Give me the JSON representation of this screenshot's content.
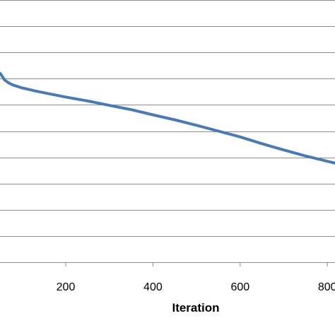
{
  "chart_data": {
    "type": "line",
    "title": "",
    "xlabel": "Iteration",
    "ylabel": "",
    "xlim": [
      50,
      870
    ],
    "ylim": [
      0,
      10
    ],
    "x_ticks": [
      200,
      400,
      600,
      800
    ],
    "x_tick_labels": [
      "200",
      "400",
      "600",
      "800"
    ],
    "y_gridlines": [
      1,
      2,
      3,
      4,
      5,
      6,
      7,
      8,
      9,
      10
    ],
    "grid": "horizontal",
    "legend": "none",
    "colors": {
      "series": "#4a7ab5",
      "grid": "#8c8c8c",
      "axis": "#8c8c8c"
    },
    "series": [
      {
        "x": [
          50,
          60,
          70,
          80,
          100,
          130,
          160,
          200,
          250,
          300,
          350,
          400,
          450,
          500,
          550,
          600,
          650,
          700,
          750,
          800,
          850,
          870
        ],
        "values": [
          7.2,
          6.95,
          6.83,
          6.75,
          6.65,
          6.53,
          6.43,
          6.3,
          6.15,
          5.98,
          5.82,
          5.62,
          5.43,
          5.22,
          5.0,
          4.78,
          4.52,
          4.28,
          4.05,
          3.85,
          3.65,
          3.55
        ]
      }
    ]
  }
}
